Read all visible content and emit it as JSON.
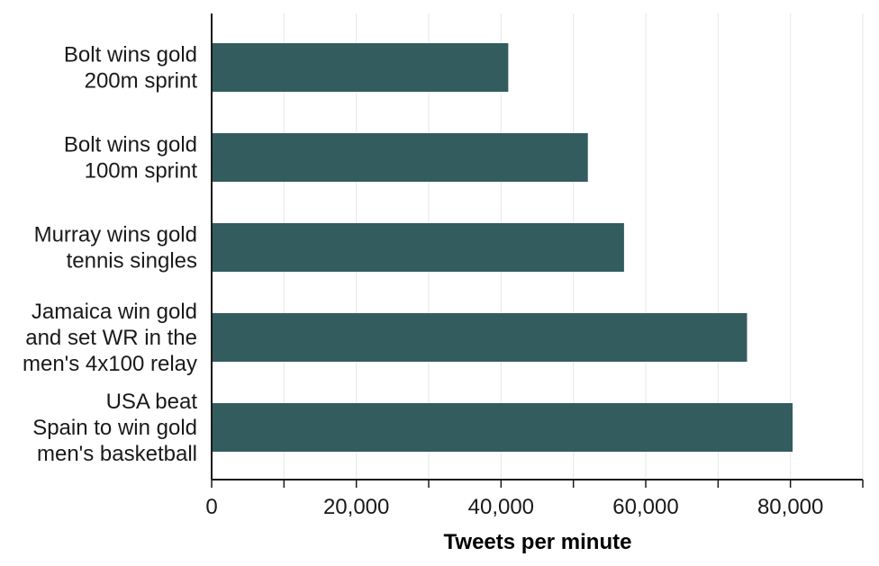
{
  "chart_data": {
    "type": "bar",
    "orientation": "horizontal",
    "categories": [
      [
        "Bolt wins gold",
        "200m sprint"
      ],
      [
        "Bolt wins gold",
        "100m sprint"
      ],
      [
        "Murray wins gold",
        "tennis singles"
      ],
      [
        "Jamaica win gold",
        "and set WR in the",
        "men's 4x100 relay"
      ],
      [
        "USA beat",
        "Spain to win gold",
        "men's basketball"
      ]
    ],
    "values": [
      41000,
      52000,
      57000,
      74000,
      80300
    ],
    "xlabel": "Tweets per minute",
    "ylabel": "",
    "xlim": [
      0,
      90000
    ],
    "xticks": [
      0,
      20000,
      40000,
      60000,
      80000
    ],
    "xtick_labels": [
      "0",
      "20,000",
      "40,000",
      "60,000",
      "80,000"
    ],
    "grid": "vertical",
    "colors": {
      "bar": "#335c5f",
      "grid": "#e6e6e6",
      "axis": "#1a1a1a"
    }
  }
}
